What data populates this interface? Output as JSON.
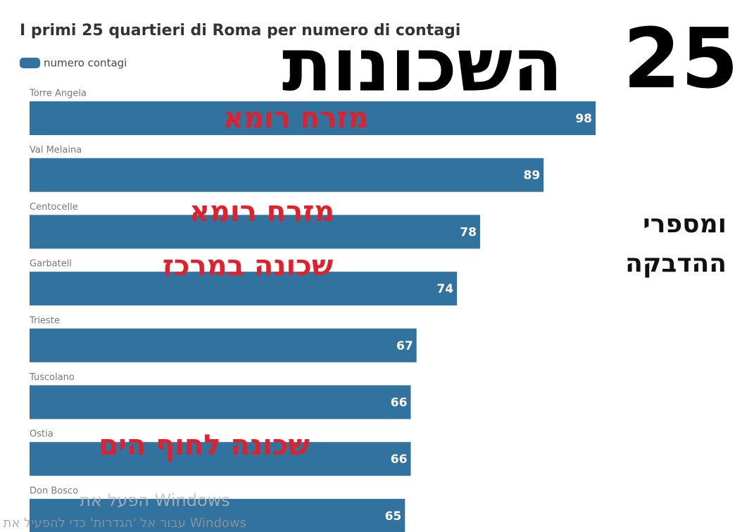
{
  "chart_data": {
    "type": "bar",
    "orientation": "horizontal",
    "title": "I primi 25 quartieri di Roma per numero di contagi",
    "categories": [
      "Torre Angela",
      "Val Melaina",
      "Centocelle",
      "Garbatell",
      "Trieste",
      "Tuscolano",
      "Ostia",
      "Don Bosco"
    ],
    "series": [
      {
        "name": "numero contagi",
        "color": "#31729f",
        "values": [
          98,
          89,
          78,
          74,
          67,
          66,
          66,
          65
        ]
      }
    ],
    "annotations": [
      "25",
      "השכונות",
      "מזרח רומא",
      "מזרח רומא",
      "שכונה במרכז",
      "שכונה לחוף הים",
      "ומספרי",
      "ההדבקה"
    ]
  },
  "watermark": {
    "line1": "הפעל את Windows",
    "line2": "עבור אל 'הגדרות' כדי להפעיל את Windows"
  }
}
